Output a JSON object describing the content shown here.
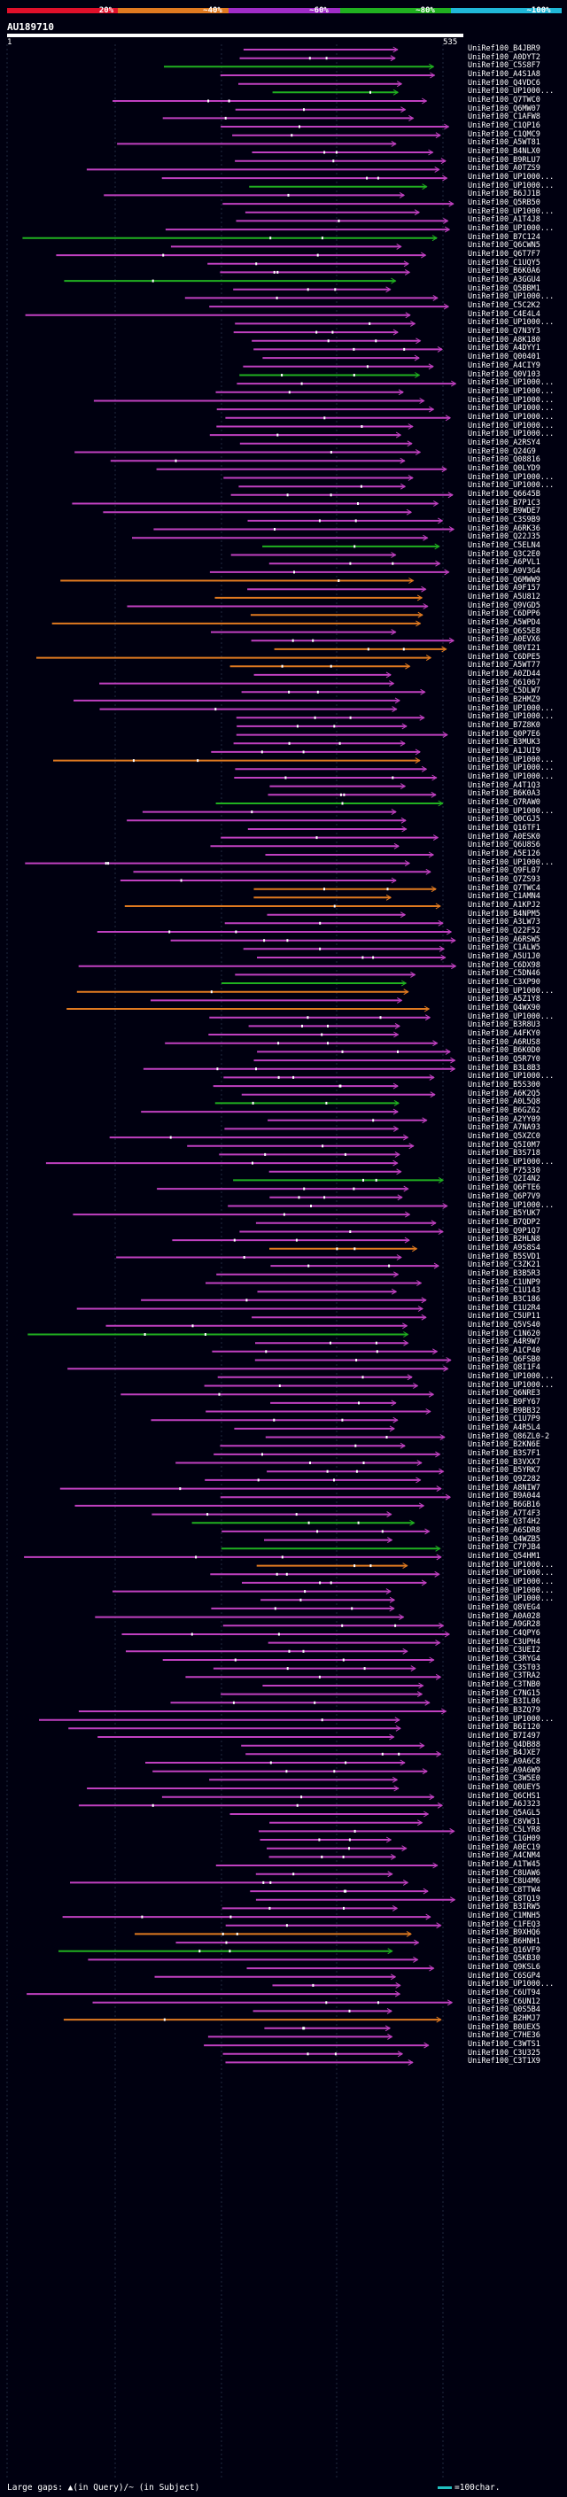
{
  "legend": {
    "colors": [
      "#e0102a",
      "#e07a20",
      "#a02cc8",
      "#20b020",
      "#20b8d8"
    ],
    "labels": [
      "20%",
      "~40%",
      "~60%",
      "~80%",
      "~100%"
    ]
  },
  "query": {
    "title": "AU189710",
    "start": "1",
    "end": "535"
  },
  "footer": {
    "text": "Large gaps: ▲(in Query)/~ (in Subject)",
    "scale": "=100char."
  },
  "hits": [
    {
      "label": "UniRef100_B4JBR9",
      "color": "#c040c0"
    },
    {
      "label": "UniRef100_A0DYT2",
      "color": "#c040c0"
    },
    {
      "label": "UniRef100_C5S8F7",
      "color": "#20b020"
    },
    {
      "label": "UniRef100_A4S1A8",
      "color": "#c040c0"
    },
    {
      "label": "UniRef100_Q4VDC6",
      "color": "#c040c0"
    },
    {
      "label": "UniRef100_UP1000...",
      "color": "#20b020"
    },
    {
      "label": "UniRef100_Q7TWC0",
      "color": "#c040c0"
    },
    {
      "label": "UniRef100_Q6MW07",
      "color": "#c040c0"
    },
    {
      "label": "UniRef100_C1AFW8",
      "color": "#c040c0"
    },
    {
      "label": "UniRef100_C1QP16",
      "color": "#c040c0"
    },
    {
      "label": "UniRef100_C1QMC9",
      "color": "#c040c0"
    },
    {
      "label": "UniRef100_A5WT81",
      "color": "#c040c0"
    },
    {
      "label": "UniRef100_B4NLX0",
      "color": "#c040c0"
    },
    {
      "label": "UniRef100_B9RLU7",
      "color": "#c040c0"
    },
    {
      "label": "UniRef100_A0TZS9",
      "color": "#c040c0"
    },
    {
      "label": "UniRef100_UP1000...",
      "color": "#c040c0"
    },
    {
      "label": "UniRef100_UP1000...",
      "color": "#20b020"
    },
    {
      "label": "UniRef100_B6JJ1B",
      "color": "#c040c0"
    },
    {
      "label": "UniRef100_Q5RB50",
      "color": "#c040c0"
    },
    {
      "label": "UniRef100_UP1000...",
      "color": "#c040c0"
    },
    {
      "label": "UniRef100_A1T4J8",
      "color": "#c040c0"
    },
    {
      "label": "UniRef100_UP1000...",
      "color": "#c040c0"
    },
    {
      "label": "UniRef100_B7C124",
      "color": "#20b020"
    },
    {
      "label": "UniRef100_Q6CWN5",
      "color": "#c040c0"
    },
    {
      "label": "UniRef100_Q6T7F7",
      "color": "#c040c0"
    },
    {
      "label": "UniRef100_C1UQY5",
      "color": "#c040c0"
    },
    {
      "label": "UniRef100_B6K0A6",
      "color": "#c040c0"
    },
    {
      "label": "UniRef100_A3GGU4",
      "color": "#20b020"
    },
    {
      "label": "UniRef100_Q5BBM1",
      "color": "#c040c0"
    },
    {
      "label": "UniRef100_UP1000...",
      "color": "#c040c0"
    },
    {
      "label": "UniRef100_C5C2K2",
      "color": "#c040c0"
    },
    {
      "label": "UniRef100_C4E4L4",
      "color": "#c040c0"
    },
    {
      "label": "UniRef100_UP1000...",
      "color": "#c040c0"
    },
    {
      "label": "UniRef100_Q7N3Y3",
      "color": "#c040c0"
    },
    {
      "label": "UniRef100_A8K180",
      "color": "#c040c0"
    },
    {
      "label": "UniRef100_A4DYY1",
      "color": "#c040c0"
    },
    {
      "label": "UniRef100_Q00401",
      "color": "#c040c0"
    },
    {
      "label": "UniRef100_A4CIY9",
      "color": "#c040c0"
    },
    {
      "label": "UniRef100_Q0V103",
      "color": "#20b020"
    },
    {
      "label": "UniRef100_UP1000...",
      "color": "#c040c0"
    },
    {
      "label": "UniRef100_UP1000...",
      "color": "#c040c0"
    },
    {
      "label": "UniRef100_UP1000...",
      "color": "#c040c0"
    },
    {
      "label": "UniRef100_UP1000...",
      "color": "#c040c0"
    },
    {
      "label": "UniRef100_UP1000...",
      "color": "#c040c0"
    },
    {
      "label": "UniRef100_UP1000...",
      "color": "#c040c0"
    },
    {
      "label": "UniRef100_UP1000...",
      "color": "#c040c0"
    },
    {
      "label": "UniRef100_A2RSY4",
      "color": "#c040c0"
    },
    {
      "label": "UniRef100_Q24G9",
      "color": "#c040c0"
    },
    {
      "label": "UniRef100_Q08816",
      "color": "#c040c0"
    },
    {
      "label": "UniRef100_Q0LYD9",
      "color": "#c040c0"
    },
    {
      "label": "UniRef100_UP1000...",
      "color": "#c040c0"
    },
    {
      "label": "UniRef100_UP1000...",
      "color": "#c040c0"
    },
    {
      "label": "UniRef100_Q6645B",
      "color": "#c040c0"
    },
    {
      "label": "UniRef100_B7P1C3",
      "color": "#c040c0"
    },
    {
      "label": "UniRef100_B9WDE7",
      "color": "#c040c0"
    },
    {
      "label": "UniRef100_C3S9B9",
      "color": "#c040c0"
    },
    {
      "label": "UniRef100_A6RK36",
      "color": "#c040c0"
    },
    {
      "label": "UniRef100_Q22J35",
      "color": "#c040c0"
    },
    {
      "label": "UniRef100_C5ELN4",
      "color": "#20b020"
    },
    {
      "label": "UniRef100_Q3C2E0",
      "color": "#c040c0"
    },
    {
      "label": "UniRef100_A6PVL1",
      "color": "#c040c0"
    },
    {
      "label": "UniRef100_A9V3G4",
      "color": "#c040c0"
    },
    {
      "label": "UniRef100_Q6MWW9",
      "color": "#e07a20"
    },
    {
      "label": "UniRef100_A9F157",
      "color": "#c040c0"
    },
    {
      "label": "UniRef100_A5U812",
      "color": "#e07a20"
    },
    {
      "label": "UniRef100_Q9VGD5",
      "color": "#c040c0"
    },
    {
      "label": "UniRef100_C6DPP6",
      "color": "#e07a20"
    },
    {
      "label": "UniRef100_A5WPD4",
      "color": "#e07a20"
    },
    {
      "label": "UniRef100_Q6S5E8",
      "color": "#c040c0"
    },
    {
      "label": "UniRef100_A0EVX6",
      "color": "#c040c0"
    },
    {
      "label": "UniRef100_Q8VI21",
      "color": "#e07a20"
    },
    {
      "label": "UniRef100_C6DPE5",
      "color": "#e07a20"
    },
    {
      "label": "UniRef100_A5WT77",
      "color": "#e07a20"
    },
    {
      "label": "UniRef100_A0ZD44",
      "color": "#c040c0"
    },
    {
      "label": "UniRef100_Q61067",
      "color": "#c040c0"
    },
    {
      "label": "UniRef100_C5DLW7",
      "color": "#c040c0"
    },
    {
      "label": "UniRef100_B2HMZ9",
      "color": "#c040c0"
    },
    {
      "label": "UniRef100_UP1000...",
      "color": "#c040c0"
    },
    {
      "label": "UniRef100_UP1000...",
      "color": "#c040c0"
    },
    {
      "label": "UniRef100_B7Z8K0",
      "color": "#c040c0"
    },
    {
      "label": "UniRef100_Q0P7E6",
      "color": "#c040c0"
    },
    {
      "label": "UniRef100_B3MUK3",
      "color": "#c040c0"
    },
    {
      "label": "UniRef100_A1JUI9",
      "color": "#c040c0"
    },
    {
      "label": "UniRef100_UP1000...",
      "color": "#e07a20"
    },
    {
      "label": "UniRef100_UP1000...",
      "color": "#c040c0"
    },
    {
      "label": "UniRef100_UP1000...",
      "color": "#c040c0"
    },
    {
      "label": "UniRef100_A4T1Q3",
      "color": "#c040c0"
    },
    {
      "label": "UniRef100_B6K0A3",
      "color": "#c040c0"
    },
    {
      "label": "UniRef100_Q7RAW0",
      "color": "#20b020"
    },
    {
      "label": "UniRef100_UP1000...",
      "color": "#c040c0"
    },
    {
      "label": "UniRef100_Q0CGJ5",
      "color": "#c040c0"
    },
    {
      "label": "UniRef100_Q16TF1",
      "color": "#c040c0"
    },
    {
      "label": "UniRef100_A0ESK0",
      "color": "#c040c0"
    },
    {
      "label": "UniRef100_Q6U8S6",
      "color": "#c040c0"
    },
    {
      "label": "UniRef100_A5E126",
      "color": "#c040c0"
    },
    {
      "label": "UniRef100_UP1000...",
      "color": "#c040c0"
    },
    {
      "label": "UniRef100_Q9FL07",
      "color": "#c040c0"
    },
    {
      "label": "UniRef100_Q7ZS93",
      "color": "#c040c0"
    },
    {
      "label": "UniRef100_Q7TWC4",
      "color": "#e07a20"
    },
    {
      "label": "UniRef100_C1AMN4",
      "color": "#e07a20"
    },
    {
      "label": "UniRef100_A1KPJ2",
      "color": "#e07a20"
    },
    {
      "label": "UniRef100_B4NPM5",
      "color": "#c040c0"
    },
    {
      "label": "UniRef100_A3LW73",
      "color": "#c040c0"
    },
    {
      "label": "UniRef100_Q22F52",
      "color": "#c040c0"
    },
    {
      "label": "UniRef100_A6RSW5",
      "color": "#c040c0"
    },
    {
      "label": "UniRef100_C1ALW5",
      "color": "#c040c0"
    },
    {
      "label": "UniRef100_A5U1J0",
      "color": "#c040c0"
    },
    {
      "label": "UniRef100_C6DX98",
      "color": "#c040c0"
    },
    {
      "label": "UniRef100_C5DN46",
      "color": "#c040c0"
    },
    {
      "label": "UniRef100_C3XP90",
      "color": "#20b020"
    },
    {
      "label": "UniRef100_UP1000...",
      "color": "#e07a20"
    },
    {
      "label": "UniRef100_A5Z1Y8",
      "color": "#c040c0"
    },
    {
      "label": "UniRef100_Q4WX90",
      "color": "#e07a20"
    },
    {
      "label": "UniRef100_UP1000...",
      "color": "#c040c0"
    },
    {
      "label": "UniRef100_B3R8U3",
      "color": "#c040c0"
    },
    {
      "label": "UniRef100_A4FKY0",
      "color": "#c040c0"
    },
    {
      "label": "UniRef100_A6RUS8",
      "color": "#c040c0"
    },
    {
      "label": "UniRef100_B6K0D0",
      "color": "#c040c0"
    },
    {
      "label": "UniRef100_Q5R7Y0",
      "color": "#c040c0"
    },
    {
      "label": "UniRef100_B3L8B3",
      "color": "#c040c0"
    },
    {
      "label": "UniRef100_UP1000...",
      "color": "#c040c0"
    },
    {
      "label": "UniRef100_B5S300",
      "color": "#c040c0"
    },
    {
      "label": "UniRef100_A6K2Q5",
      "color": "#c040c0"
    },
    {
      "label": "UniRef100_A0L5Q8",
      "color": "#20b020"
    },
    {
      "label": "UniRef100_B6GZ62",
      "color": "#c040c0"
    },
    {
      "label": "UniRef100_A2YY09",
      "color": "#c040c0"
    },
    {
      "label": "UniRef100_A7NA93",
      "color": "#c040c0"
    },
    {
      "label": "UniRef100_Q5XZC0",
      "color": "#c040c0"
    },
    {
      "label": "UniRef100_Q5I0M7",
      "color": "#c040c0"
    },
    {
      "label": "UniRef100_B3S718",
      "color": "#c040c0"
    },
    {
      "label": "UniRef100_UP1000...",
      "color": "#c040c0"
    },
    {
      "label": "UniRef100_P75330",
      "color": "#c040c0"
    },
    {
      "label": "UniRef100_Q2I4N2",
      "color": "#20b020"
    },
    {
      "label": "UniRef100_Q6FTE6",
      "color": "#c040c0"
    },
    {
      "label": "UniRef100_Q6P7V9",
      "color": "#c040c0"
    },
    {
      "label": "UniRef100_UP1000...",
      "color": "#c040c0"
    },
    {
      "label": "UniRef100_B5YUK7",
      "color": "#c040c0"
    },
    {
      "label": "UniRef100_B7QDP2",
      "color": "#c040c0"
    },
    {
      "label": "UniRef100_Q9P1Q7",
      "color": "#c040c0"
    },
    {
      "label": "UniRef100_B2HLN8",
      "color": "#c040c0"
    },
    {
      "label": "UniRef100_A9S8S4",
      "color": "#e07a20"
    },
    {
      "label": "UniRef100_B5SVD1",
      "color": "#c040c0"
    },
    {
      "label": "UniRef100_C3ZK21",
      "color": "#c040c0"
    },
    {
      "label": "UniRef100_B3B5R3",
      "color": "#c040c0"
    },
    {
      "label": "UniRef100_C1UNP9",
      "color": "#c040c0"
    },
    {
      "label": "UniRef100_C1U143",
      "color": "#c040c0"
    },
    {
      "label": "UniRef100_B3C186",
      "color": "#c040c0"
    },
    {
      "label": "UniRef100_C1U2R4",
      "color": "#c040c0"
    },
    {
      "label": "UniRef100_C5UP11",
      "color": "#c040c0"
    },
    {
      "label": "UniRef100_Q5VS40",
      "color": "#c040c0"
    },
    {
      "label": "UniRef100_C1N620",
      "color": "#20b020"
    },
    {
      "label": "UniRef100_A4R9W7",
      "color": "#c040c0"
    },
    {
      "label": "UniRef100_A1CP40",
      "color": "#c040c0"
    },
    {
      "label": "UniRef100_Q6FSB0",
      "color": "#c040c0"
    },
    {
      "label": "UniRef100_Q8I1F4",
      "color": "#c040c0"
    },
    {
      "label": "UniRef100_UP1000...",
      "color": "#c040c0"
    },
    {
      "label": "UniRef100_UP1000...",
      "color": "#c040c0"
    },
    {
      "label": "UniRef100_Q6NRE3",
      "color": "#c040c0"
    },
    {
      "label": "UniRef100_B9FY67",
      "color": "#c040c0"
    },
    {
      "label": "UniRef100_B9BB32",
      "color": "#c040c0"
    },
    {
      "label": "UniRef100_C1U7P9",
      "color": "#c040c0"
    },
    {
      "label": "UniRef100_A4R5L4",
      "color": "#c040c0"
    },
    {
      "label": "UniRef100_Q86ZL0-2",
      "color": "#c040c0"
    },
    {
      "label": "UniRef100_B2KN6E",
      "color": "#c040c0"
    },
    {
      "label": "UniRef100_B3S7F1",
      "color": "#c040c0"
    },
    {
      "label": "UniRef100_B3VXX7",
      "color": "#c040c0"
    },
    {
      "label": "UniRef100_B5YRK7",
      "color": "#c040c0"
    },
    {
      "label": "UniRef100_Q9Z282",
      "color": "#c040c0"
    },
    {
      "label": "UniRef100_A8NIW7",
      "color": "#c040c0"
    },
    {
      "label": "UniRef100_B9A044",
      "color": "#c040c0"
    },
    {
      "label": "UniRef100_B6GB16",
      "color": "#c040c0"
    },
    {
      "label": "UniRef100_A7T4F3",
      "color": "#c040c0"
    },
    {
      "label": "UniRef100_Q3T4H2",
      "color": "#20b020"
    },
    {
      "label": "UniRef100_A6SDR8",
      "color": "#c040c0"
    },
    {
      "label": "UniRef100_Q4WZB5",
      "color": "#c040c0"
    },
    {
      "label": "UniRef100_C7PJB4",
      "color": "#20b020"
    },
    {
      "label": "UniRef100_Q54HM1",
      "color": "#c040c0"
    },
    {
      "label": "UniRef100_UP1000...",
      "color": "#e07a20"
    },
    {
      "label": "UniRef100_UP1000...",
      "color": "#c040c0"
    },
    {
      "label": "UniRef100_UP1000...",
      "color": "#c040c0"
    },
    {
      "label": "UniRef100_UP1000...",
      "color": "#c040c0"
    },
    {
      "label": "UniRef100_UP1000...",
      "color": "#c040c0"
    },
    {
      "label": "UniRef100_Q8VEG4",
      "color": "#c040c0"
    },
    {
      "label": "UniRef100_A0A028",
      "color": "#c040c0"
    },
    {
      "label": "UniRef100_A9GR28",
      "color": "#c040c0"
    },
    {
      "label": "UniRef100_C4QPY6",
      "color": "#c040c0"
    },
    {
      "label": "UniRef100_C3UPH4",
      "color": "#c040c0"
    },
    {
      "label": "UniRef100_C3UEI2",
      "color": "#c040c0"
    },
    {
      "label": "UniRef100_C3RYG4",
      "color": "#c040c0"
    },
    {
      "label": "UniRef100_C3ST03",
      "color": "#c040c0"
    },
    {
      "label": "UniRef100_C3TRA2",
      "color": "#c040c0"
    },
    {
      "label": "UniRef100_C3TNB0",
      "color": "#c040c0"
    },
    {
      "label": "UniRef100_C7NG15",
      "color": "#c040c0"
    },
    {
      "label": "UniRef100_B3IL06",
      "color": "#c040c0"
    },
    {
      "label": "UniRef100_B3ZQ79",
      "color": "#c040c0"
    },
    {
      "label": "UniRef100_UP1000...",
      "color": "#c040c0"
    },
    {
      "label": "UniRef100_B6I120",
      "color": "#c040c0"
    },
    {
      "label": "UniRef100_B7I497",
      "color": "#c040c0"
    },
    {
      "label": "UniRef100_Q4DB88",
      "color": "#c040c0"
    },
    {
      "label": "UniRef100_B4JXE7",
      "color": "#c040c0"
    },
    {
      "label": "UniRef100_A9A6C8",
      "color": "#c040c0"
    },
    {
      "label": "UniRef100_A9A6W9",
      "color": "#c040c0"
    },
    {
      "label": "UniRef100_C3W5E0",
      "color": "#c040c0"
    },
    {
      "label": "UniRef100_Q0UEY5",
      "color": "#c040c0"
    },
    {
      "label": "UniRef100_Q6CHS1",
      "color": "#c040c0"
    },
    {
      "label": "UniRef100_A6J323",
      "color": "#c040c0"
    },
    {
      "label": "UniRef100_Q5AGL5",
      "color": "#c040c0"
    },
    {
      "label": "UniRef100_C8VW31",
      "color": "#c040c0"
    },
    {
      "label": "UniRef100_C5LYR8",
      "color": "#c040c0"
    },
    {
      "label": "UniRef100_C1GH09",
      "color": "#c040c0"
    },
    {
      "label": "UniRef100_A0EC19",
      "color": "#c040c0"
    },
    {
      "label": "UniRef100_A4CNM4",
      "color": "#c040c0"
    },
    {
      "label": "UniRef100_A1TW45",
      "color": "#c040c0"
    },
    {
      "label": "UniRef100_C8UAW6",
      "color": "#c040c0"
    },
    {
      "label": "UniRef100_C8U4M6",
      "color": "#c040c0"
    },
    {
      "label": "UniRef100_C8TTW4",
      "color": "#c040c0"
    },
    {
      "label": "UniRef100_C8TQ19",
      "color": "#c040c0"
    },
    {
      "label": "UniRef100_B3IRW5",
      "color": "#c040c0"
    },
    {
      "label": "UniRef100_C1MNH5",
      "color": "#c040c0"
    },
    {
      "label": "UniRef100_C1FEQ3",
      "color": "#c040c0"
    },
    {
      "label": "UniRef100_B9XHQ6",
      "color": "#e07a20"
    },
    {
      "label": "UniRef100_B6HNH1",
      "color": "#c040c0"
    },
    {
      "label": "UniRef100_Q16VF9",
      "color": "#20b020"
    },
    {
      "label": "UniRef100_Q5KB30",
      "color": "#c040c0"
    },
    {
      "label": "UniRef100_Q9KSL6",
      "color": "#c040c0"
    },
    {
      "label": "UniRef100_C6SGP4",
      "color": "#c040c0"
    },
    {
      "label": "UniRef100_UP1000...",
      "color": "#c040c0"
    },
    {
      "label": "UniRef100_C6UT94",
      "color": "#c040c0"
    },
    {
      "label": "UniRef100_C6UN12",
      "color": "#c040c0"
    },
    {
      "label": "UniRef100_Q0S5B4",
      "color": "#c040c0"
    },
    {
      "label": "UniRef100_B2HMJ7",
      "color": "#e07a20"
    },
    {
      "label": "UniRef100_B0UEX5",
      "color": "#c040c0"
    },
    {
      "label": "UniRef100_C7HE36",
      "color": "#c040c0"
    },
    {
      "label": "UniRef100_C3WTS1",
      "color": "#c040c0"
    },
    {
      "label": "UniRef100_C3U325",
      "color": "#c040c0"
    },
    {
      "label": "UniRef100_C3T1X9",
      "color": "#c040c0"
    }
  ]
}
